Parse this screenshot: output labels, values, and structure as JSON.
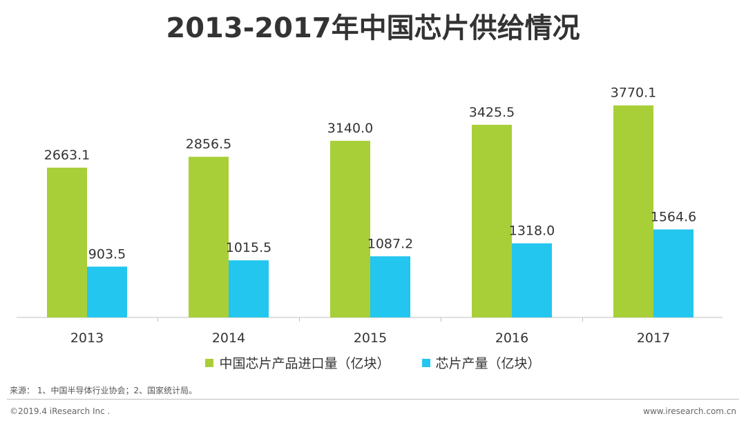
{
  "title": "2013-2017年中国芯片供给情况",
  "colors": {
    "import": "#a8cf38",
    "production": "#23c6ee",
    "axis": "#bfbfbf"
  },
  "chart_data": {
    "type": "bar",
    "title": "2013-2017年中国芯片供给情况",
    "categories": [
      "2013",
      "2014",
      "2015",
      "2016",
      "2017"
    ],
    "series": [
      {
        "name": "中国芯片产品进口量（亿块）",
        "values": [
          2663.1,
          2856.5,
          3140.0,
          3425.5,
          3770.1
        ],
        "labels": [
          "2663.1",
          "2856.5",
          "3140.0",
          "3425.5",
          "3770.1"
        ]
      },
      {
        "name": "芯片产量（亿块）",
        "values": [
          903.5,
          1015.5,
          1087.2,
          1318.0,
          1564.6
        ],
        "labels": [
          "903.5",
          "1015.5",
          "1087.2",
          "1318.0",
          "1564.6"
        ]
      }
    ],
    "ylim": [
      0,
      4500
    ],
    "grid": false,
    "legend_position": "bottom"
  },
  "footer": {
    "source": "来源： 1、中国半导体行业协会；2、国家统计局。",
    "copyright": "©2019.4 iResearch Inc .",
    "website": "www.iresearch.com.cn"
  }
}
